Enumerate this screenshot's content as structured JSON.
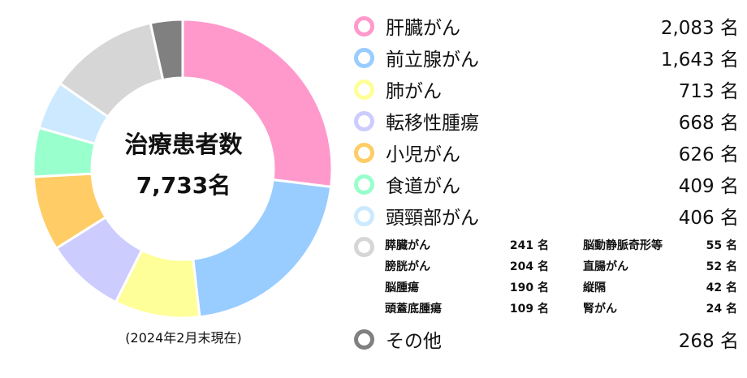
{
  "chart_data": {
    "type": "pie",
    "variant": "donut",
    "center_title": "治療患者数",
    "center_total": "7,733名",
    "note": "(2024年2月末現在)",
    "slices": [
      {
        "label": "肝臓がん",
        "value": 2083,
        "value_text": "2,083",
        "color": "#ff99cc"
      },
      {
        "label": "前立腺がん",
        "value": 1643,
        "value_text": "1,643",
        "color": "#99ccff"
      },
      {
        "label": "肺がん",
        "value": 713,
        "value_text": "713",
        "color": "#ffff99"
      },
      {
        "label": "転移性腫瘍",
        "value": 668,
        "value_text": "668",
        "color": "#ccccff"
      },
      {
        "label": "小児がん",
        "value": 626,
        "value_text": "626",
        "color": "#ffcc66"
      },
      {
        "label": "食道がん",
        "value": 409,
        "value_text": "409",
        "color": "#99ffcc"
      },
      {
        "label": "頭頸部がん",
        "value": 406,
        "value_text": "406",
        "color": "#cce9ff"
      },
      {
        "label": "small-group",
        "value": 917,
        "color": "#d6d6d6"
      },
      {
        "label": "その他",
        "value": 268,
        "value_text": "268",
        "color": "#808080"
      }
    ],
    "small_items": [
      {
        "label": "膵臓がん",
        "value": 241
      },
      {
        "label": "膀胱がん",
        "value": 204
      },
      {
        "label": "脳腫瘍",
        "value": 190
      },
      {
        "label": "頭蓋底腫瘍",
        "value": 109
      },
      {
        "label": "脳動静脈奇形等",
        "value": 55
      },
      {
        "label": "直腸がん",
        "value": 52
      },
      {
        "label": "縦隔",
        "value": 42
      },
      {
        "label": "腎がん",
        "value": 24
      }
    ],
    "unit": "名"
  }
}
